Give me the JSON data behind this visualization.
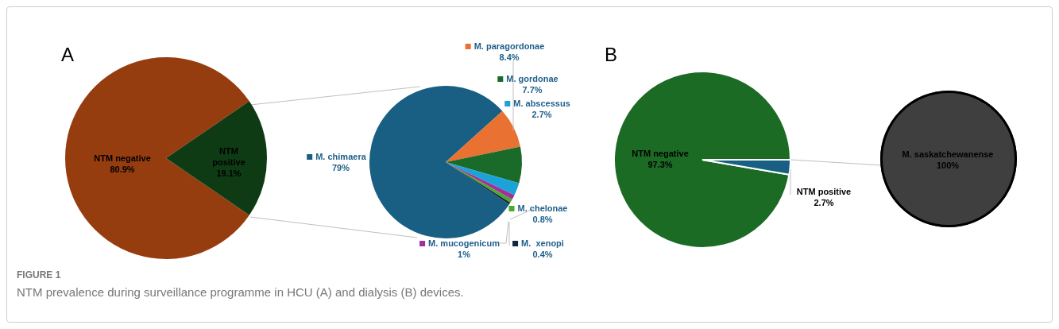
{
  "chart_data": [
    {
      "type": "pie",
      "title": "A",
      "categories": [
        "NTM negative",
        "NTM positive"
      ],
      "values": [
        80.9,
        19.1
      ],
      "colors": [
        "#963d10",
        "#0e3b14"
      ],
      "value_labels": [
        "80.9%",
        "19.1%"
      ],
      "annotations": [
        "FIGURE 1",
        "NTM prevalence during surveillance programme in HCU (A) and dialysis (B) devices."
      ]
    },
    {
      "type": "pie",
      "categories": [
        "M. chimaera",
        "M. paragordonae",
        "M. gordonae",
        "M. abscessus",
        "M. mucogenicum",
        "M. chelonae",
        "M.  xenopi"
      ],
      "values": [
        79,
        8.4,
        7.7,
        2.7,
        1,
        0.8,
        0.4
      ],
      "colors": [
        "#185f83",
        "#e97132",
        "#1a6b2a",
        "#1ba3d9",
        "#a0309a",
        "#4ea72e",
        "#0e2840"
      ],
      "value_labels": [
        "79%",
        "8.4%",
        "7.7%",
        "2.7%",
        "1%",
        "0.8%",
        "0.4%"
      ],
      "legend": "right"
    },
    {
      "type": "pie",
      "title": "B",
      "categories": [
        "NTM negative",
        "NTM positive"
      ],
      "values": [
        97.3,
        2.7
      ],
      "colors": [
        "#1c6b25",
        "#185f83"
      ],
      "value_labels": [
        "97.3%",
        "2.7%"
      ]
    },
    {
      "type": "pie",
      "categories": [
        "M. saskatchewanense"
      ],
      "values": [
        100
      ],
      "colors": [
        "#3f3f3f"
      ],
      "value_labels": [
        "100%"
      ]
    }
  ]
}
